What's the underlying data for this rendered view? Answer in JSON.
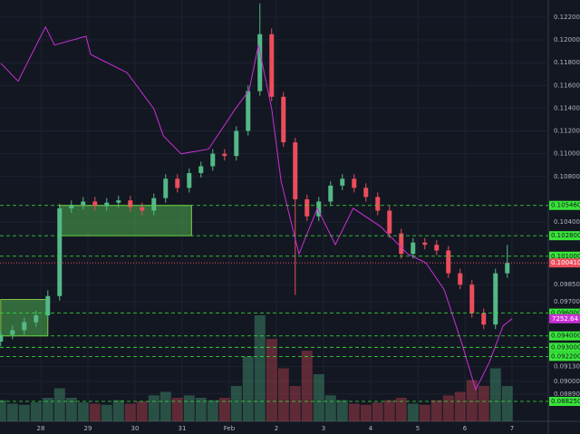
{
  "chart_data": {
    "type": "candlestick",
    "x": [
      -0.85,
      -0.6,
      -0.35,
      -0.1,
      0.15,
      0.4,
      0.65,
      0.9,
      1.15,
      1.4,
      1.65,
      1.9,
      2.15,
      2.4,
      2.65,
      2.9,
      3.15,
      3.4,
      3.65,
      3.9,
      4.15,
      4.4,
      4.65,
      4.9,
      5.15,
      5.4,
      5.65,
      5.9,
      6.15,
      6.4,
      6.65,
      6.9,
      7.15,
      7.4,
      7.65,
      7.9,
      8.15,
      8.4,
      8.65,
      8.9,
      9.15,
      9.4,
      9.65,
      9.9
    ],
    "open": [
      0.0935,
      0.0941,
      0.0945,
      0.0952,
      0.0958,
      0.0975,
      0.1052,
      0.1055,
      0.1058,
      0.1054,
      0.1057,
      0.1059,
      0.1053,
      0.105,
      0.1061,
      0.1078,
      0.107,
      0.1083,
      0.1089,
      0.11,
      0.1098,
      0.112,
      0.1155,
      0.1205,
      0.115,
      0.111,
      0.106,
      0.1045,
      0.1058,
      0.1072,
      0.1078,
      0.107,
      0.1062,
      0.105,
      0.103,
      0.1012,
      0.1022,
      0.102,
      0.1015,
      0.0995,
      0.0985,
      0.096,
      0.095,
      0.0995
    ],
    "high": [
      0.0945,
      0.0949,
      0.0956,
      0.0962,
      0.098,
      0.1056,
      0.1059,
      0.1062,
      0.1062,
      0.1061,
      0.1063,
      0.1063,
      0.1057,
      0.1065,
      0.1082,
      0.1082,
      0.1087,
      0.1093,
      0.1104,
      0.1104,
      0.1124,
      0.116,
      0.1232,
      0.121,
      0.1154,
      0.1114,
      0.1064,
      0.1062,
      0.1076,
      0.1082,
      0.1082,
      0.1074,
      0.1066,
      0.1054,
      0.1034,
      0.1026,
      0.1026,
      0.1024,
      0.1019,
      0.0999,
      0.0989,
      0.0964,
      0.0999,
      0.102
    ],
    "low": [
      0.0931,
      0.0937,
      0.0941,
      0.0948,
      0.0954,
      0.0971,
      0.1048,
      0.1051,
      0.105,
      0.105,
      0.1053,
      0.1049,
      0.1046,
      0.1046,
      0.1057,
      0.1066,
      0.1066,
      0.1079,
      0.1085,
      0.1094,
      0.1094,
      0.1116,
      0.1151,
      0.1146,
      0.1106,
      0.0976,
      0.1041,
      0.1041,
      0.1054,
      0.1068,
      0.1066,
      0.1058,
      0.1046,
      0.1026,
      0.1008,
      0.1008,
      0.1016,
      0.1011,
      0.0991,
      0.0981,
      0.0956,
      0.0946,
      0.0946,
      0.0991
    ],
    "close": [
      0.0941,
      0.0945,
      0.0952,
      0.0958,
      0.0975,
      0.1052,
      0.1055,
      0.1058,
      0.1054,
      0.1057,
      0.1059,
      0.1053,
      0.105,
      0.1061,
      0.1078,
      0.107,
      0.1083,
      0.1089,
      0.11,
      0.1098,
      0.112,
      0.1155,
      0.1205,
      0.115,
      0.111,
      0.106,
      0.1045,
      0.1058,
      0.1072,
      0.1078,
      0.107,
      0.1062,
      0.105,
      0.103,
      0.1012,
      0.1022,
      0.102,
      0.1015,
      0.0995,
      0.0985,
      0.096,
      0.095,
      0.0995,
      0.10041
    ],
    "last_label": "0.100410",
    "volume": [
      18,
      15,
      14,
      16,
      20,
      28,
      20,
      16,
      15,
      14,
      18,
      15,
      17,
      22,
      25,
      20,
      22,
      20,
      18,
      20,
      30,
      55,
      90,
      70,
      45,
      30,
      60,
      40,
      22,
      18,
      15,
      14,
      16,
      18,
      20,
      15,
      14,
      18,
      22,
      25,
      35,
      30,
      45,
      30
    ],
    "vlim": [
      0,
      100
    ],
    "up_color": "#53b987",
    "down_color": "#eb4d5c",
    "overlay": {
      "color": "#c930d6",
      "axis": "y2",
      "x": [
        -0.85,
        -0.48,
        0.1,
        0.29,
        0.96,
        1.06,
        1.83,
        2.4,
        2.6,
        2.98,
        3.56,
        4.13,
        4.42,
        4.62,
        4.9,
        5.1,
        5.48,
        5.87,
        6.25,
        6.63,
        7.21,
        7.79,
        8.17,
        8.56,
        8.94,
        9.23,
        9.52,
        9.81,
        10.0
      ],
      "values": [
        7633,
        7606,
        7687,
        7660,
        7673,
        7646,
        7619,
        7565,
        7525,
        7498,
        7505,
        7565,
        7592,
        7660,
        7565,
        7457,
        7349,
        7417,
        7363,
        7417,
        7390,
        7349,
        7336,
        7296,
        7215,
        7147,
        7188,
        7242,
        7252.64
      ]
    },
    "y2lim": [
      7100,
      7727
    ],
    "levels": [
      {
        "value": 0.10546,
        "label": "0.105460"
      },
      {
        "value": 0.1028,
        "label": "0.102800"
      },
      {
        "value": 0.101,
        "label": "0.101000"
      },
      {
        "value": 0.096,
        "label": "0.096000"
      },
      {
        "value": 0.094,
        "label": "0.094000"
      },
      {
        "value": 0.093,
        "label": "0.093000"
      },
      {
        "value": 0.0922,
        "label": "0.092200"
      },
      {
        "value": 0.08825,
        "label": "0.088250"
      }
    ],
    "level_color": "#39e639",
    "zones": [
      {
        "x": [
          -0.85,
          0.15
        ],
        "y": [
          0.094,
          0.0972
        ]
      },
      {
        "x": [
          0.4,
          3.2
        ],
        "y": [
          0.1028,
          0.10546
        ]
      }
    ],
    "xlim": [
      -0.865,
      10.77
    ],
    "ylim": [
      0.0865,
      0.1235
    ],
    "xticks": [
      {
        "value": 0,
        "label": "28"
      },
      {
        "value": 1,
        "label": "29"
      },
      {
        "value": 2,
        "label": "30"
      },
      {
        "value": 3,
        "label": "31"
      },
      {
        "value": 4,
        "label": "Feb"
      },
      {
        "value": 5,
        "label": "2"
      },
      {
        "value": 6,
        "label": "3"
      },
      {
        "value": 7,
        "label": "4"
      },
      {
        "value": 8,
        "label": "5"
      },
      {
        "value": 9,
        "label": "6"
      },
      {
        "value": 10,
        "label": "7"
      }
    ],
    "yticks": [
      {
        "value": 0.122,
        "label": "0.122000"
      },
      {
        "value": 0.12,
        "label": "0.120000"
      },
      {
        "value": 0.118,
        "label": "0.118000"
      },
      {
        "value": 0.116,
        "label": "0.116000"
      },
      {
        "value": 0.114,
        "label": "0.114000"
      },
      {
        "value": 0.112,
        "label": "0.112000"
      },
      {
        "value": 0.11,
        "label": "0.110000"
      },
      {
        "value": 0.108,
        "label": "0.108000"
      },
      {
        "value": 0.104,
        "label": "0.104000"
      },
      {
        "value": 0.0985,
        "label": "0.098500"
      },
      {
        "value": 0.097,
        "label": "0.097000"
      },
      {
        "value": 0.0913,
        "label": "0.091300"
      },
      {
        "value": 0.09,
        "label": "0.090000"
      },
      {
        "value": 0.0889,
        "label": "0.088900"
      }
    ],
    "grid": true
  }
}
